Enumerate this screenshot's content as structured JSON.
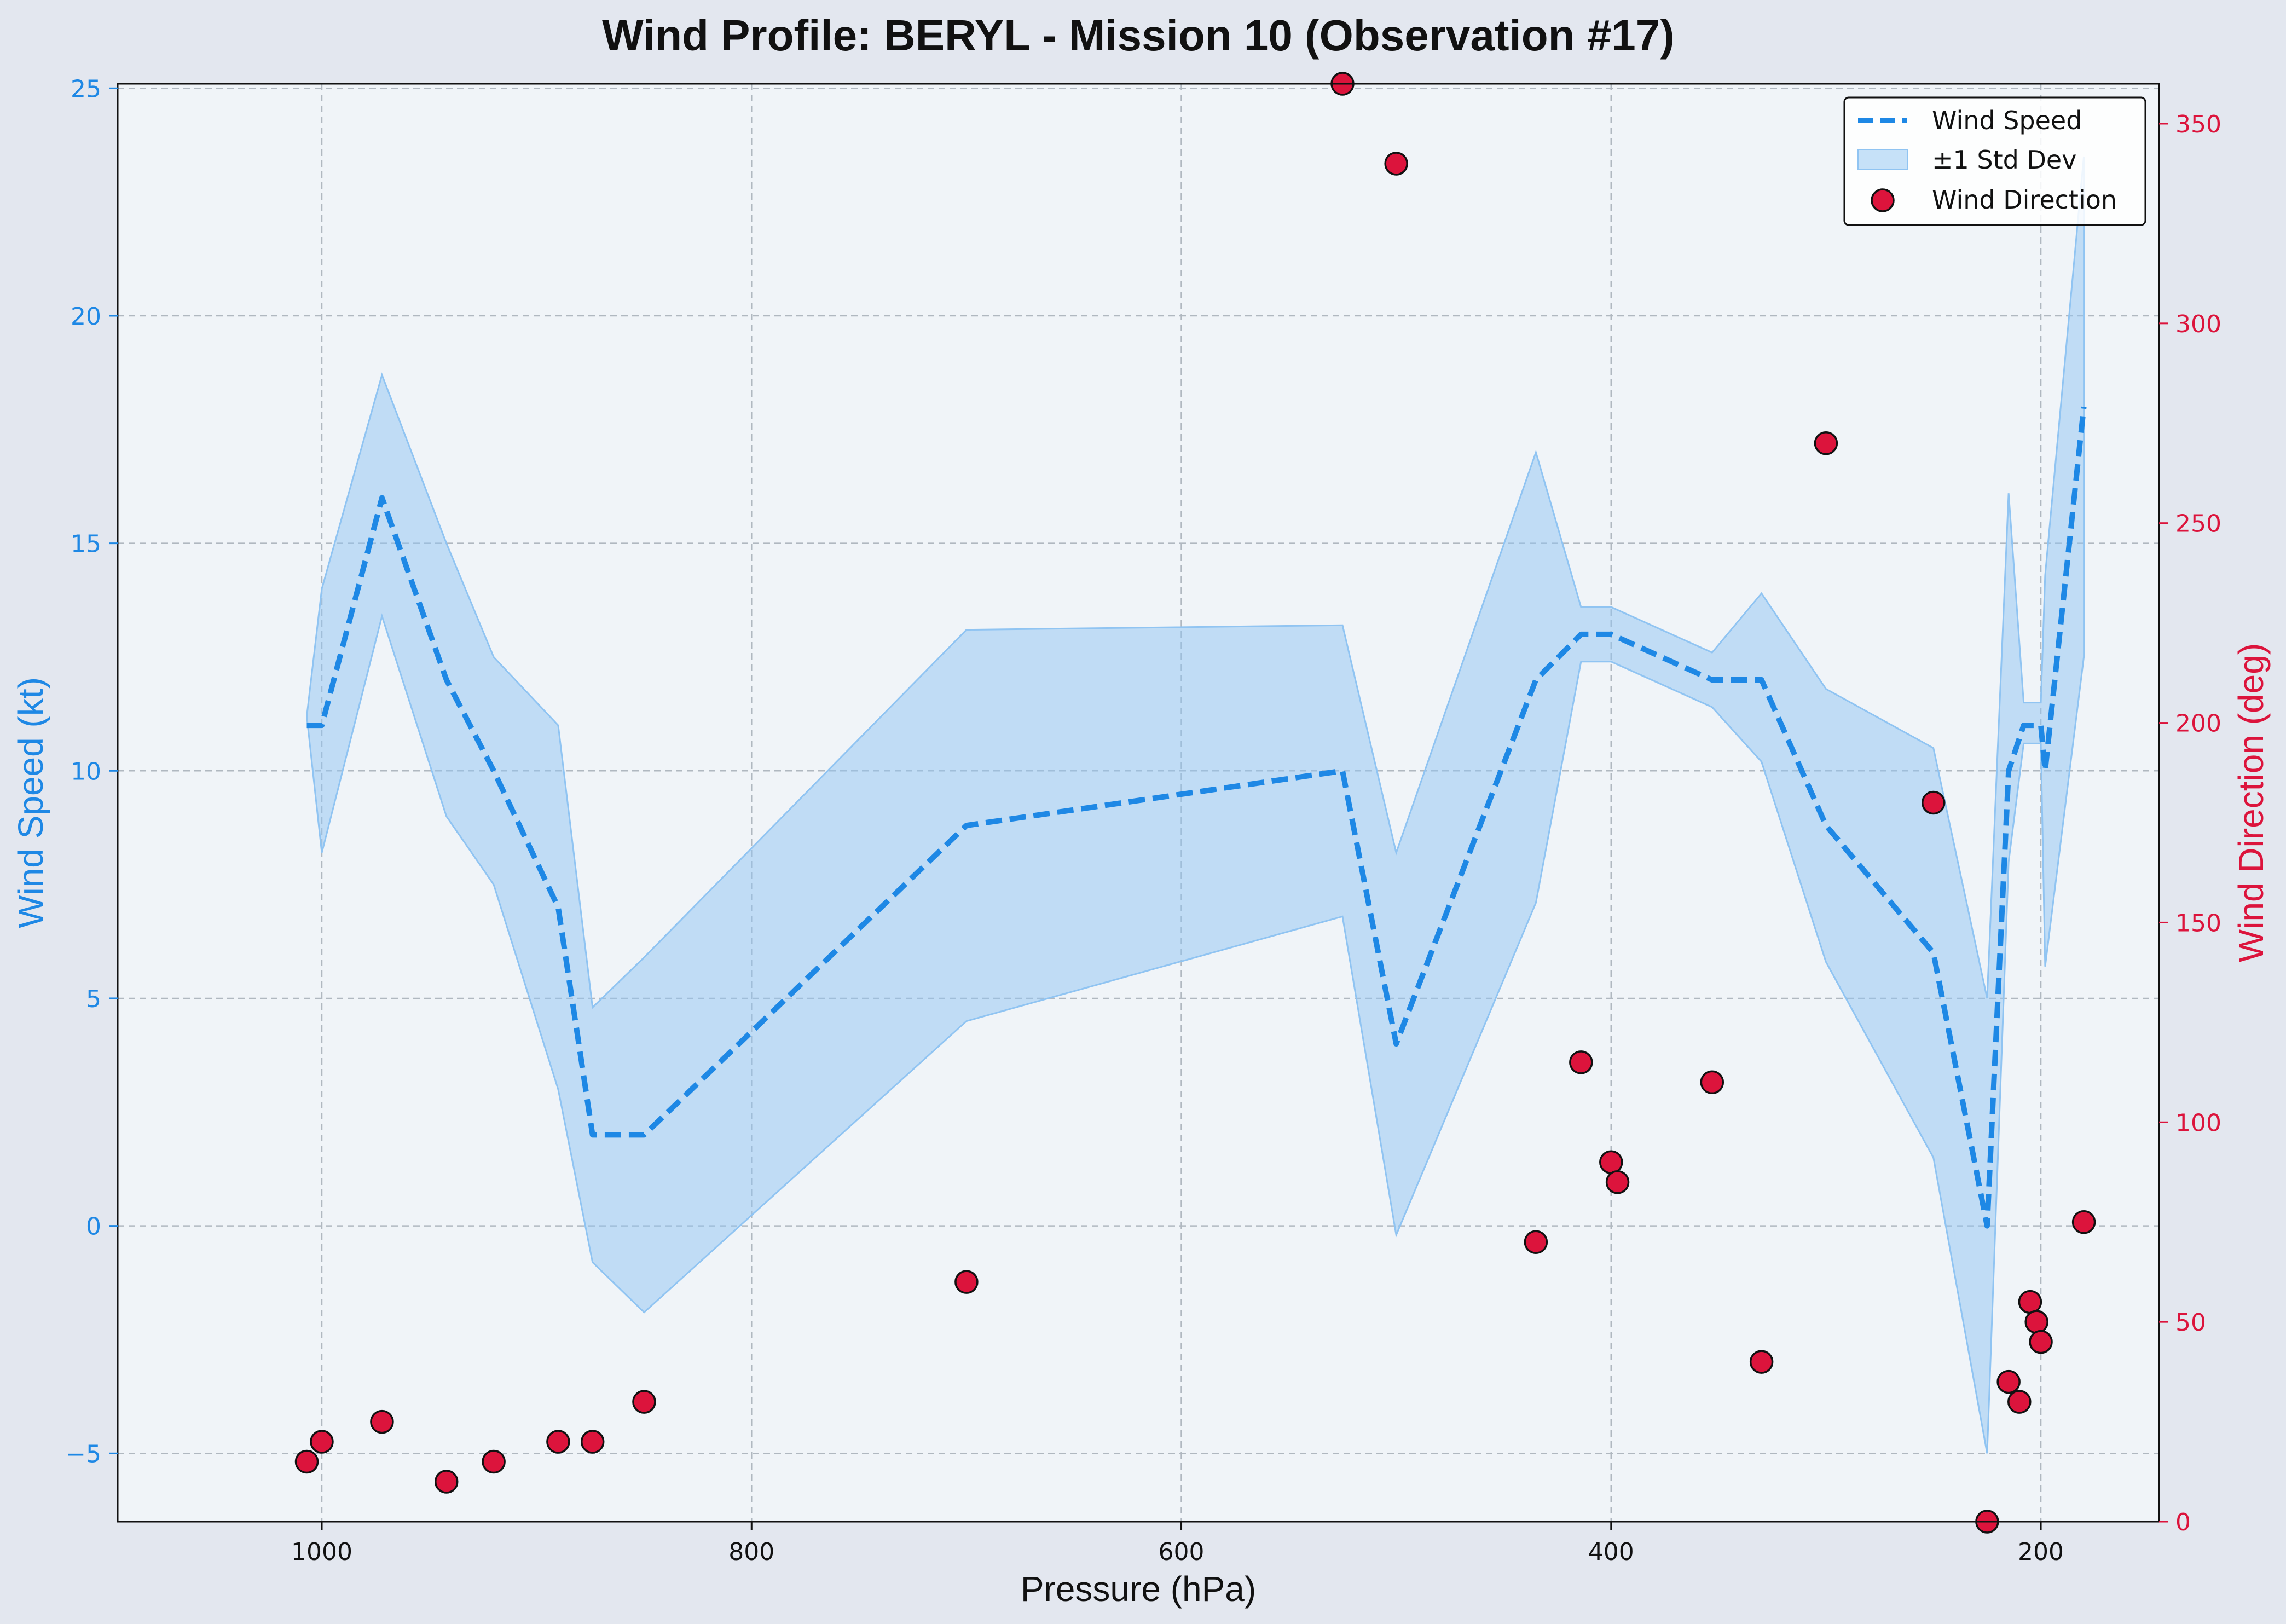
{
  "chart_data": {
    "type": "line",
    "title": "Wind Profile: BERYL - Mission 10 (Observation #17)",
    "xlabel": "Pressure (hPa)",
    "ylabel": "Wind Speed (kt)",
    "y2label": "Wind Direction (deg)",
    "xlim": [
      1095,
      145
    ],
    "ylim": [
      -6.5,
      25.1
    ],
    "y2lim": [
      0,
      360
    ],
    "x_inverted": true,
    "grid": true,
    "legend_position": "upper right",
    "xticks": [
      1000,
      800,
      600,
      400,
      200
    ],
    "yticks": [
      -5,
      0,
      5,
      10,
      15,
      20,
      25
    ],
    "y2ticks": [
      0,
      50,
      100,
      150,
      200,
      250,
      300,
      350
    ],
    "colors": {
      "speed": "#1e88e5",
      "band": "#90c4f2",
      "direction": "#dc143c",
      "direction_edge": "#111111",
      "plot_bg": "#f0f4f8",
      "figure_bg": "#e3e7ef",
      "grid": "#b0b8c0"
    },
    "series": [
      {
        "name": "Wind Speed",
        "axis": "left",
        "style": "dashed",
        "x": [
          1007,
          1000,
          972,
          942,
          920,
          890,
          874,
          850,
          700,
          525,
          500,
          435,
          414,
          400,
          353,
          330,
          300,
          250,
          225,
          215,
          208,
          200,
          198,
          180
        ],
        "values": [
          11,
          11,
          16,
          12,
          10,
          7,
          2,
          2,
          8.8,
          10,
          4,
          12,
          13,
          13,
          12,
          12,
          8.8,
          6,
          0,
          10,
          11,
          11,
          10,
          18
        ]
      },
      {
        "name": "±1 Std Dev",
        "axis": "left",
        "style": "band",
        "x": [
          1007,
          1000,
          972,
          942,
          920,
          890,
          874,
          850,
          700,
          525,
          500,
          435,
          414,
          400,
          353,
          330,
          300,
          250,
          225,
          215,
          208,
          200,
          198,
          180
        ],
        "lower": [
          11.2,
          8.2,
          13.4,
          9.0,
          7.5,
          3.0,
          -0.8,
          -1.9,
          4.5,
          6.8,
          -0.2,
          7.1,
          12.4,
          12.4,
          11.4,
          10.2,
          5.8,
          1.5,
          -5.0,
          8.0,
          10.6,
          10.6,
          5.7,
          12.5
        ],
        "upper": [
          11.2,
          14.0,
          18.7,
          15.0,
          12.5,
          11.0,
          4.8,
          5.9,
          13.1,
          13.2,
          8.2,
          17.0,
          13.6,
          13.6,
          12.6,
          13.9,
          11.8,
          10.5,
          5.0,
          16.1,
          11.5,
          11.5,
          14.3,
          23.5
        ]
      },
      {
        "name": "Wind Direction",
        "axis": "right",
        "style": "scatter",
        "x": [
          1007,
          1000,
          972,
          942,
          920,
          890,
          874,
          850,
          700,
          525,
          500,
          435,
          414,
          400,
          397,
          353,
          330,
          300,
          250,
          225,
          215,
          210,
          205,
          202,
          200,
          180
        ],
        "values": [
          15,
          20,
          25,
          10,
          15,
          20,
          20,
          30,
          60,
          360,
          340,
          70,
          115,
          90,
          85,
          110,
          40,
          270,
          180,
          0,
          35,
          30,
          55,
          50,
          45,
          75
        ]
      }
    ]
  }
}
